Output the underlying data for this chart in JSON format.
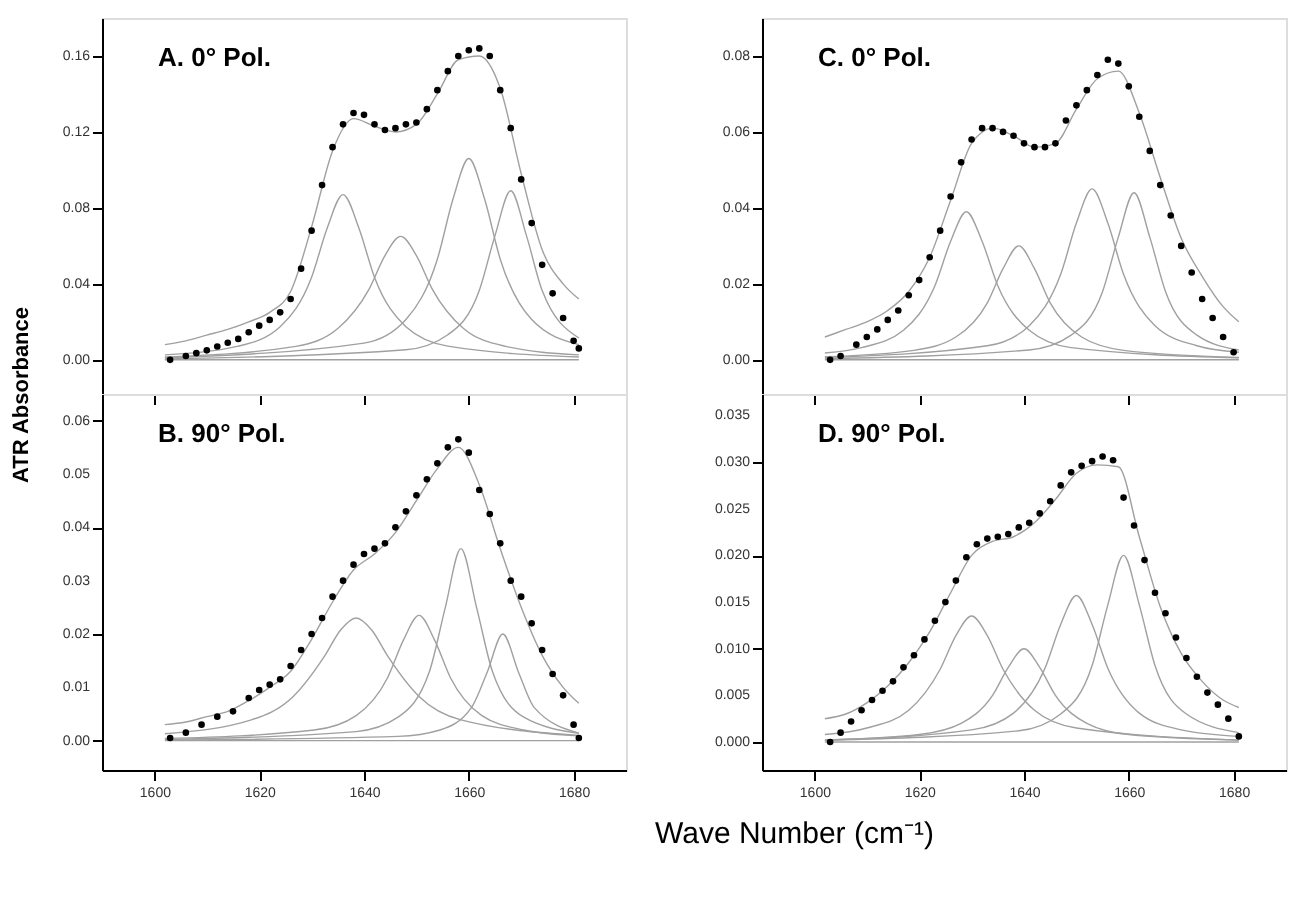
{
  "chart_data": [
    {
      "type": "scatter",
      "annotations": [
        "A. 0° Pol."
      ],
      "xlim": [
        1590,
        1690
      ],
      "xticks": [
        1600,
        1620,
        1640,
        1660,
        1680
      ],
      "ylim": [
        -0.018,
        0.18
      ],
      "yticks": [
        {
          "value": 0,
          "label": "0.00"
        },
        {
          "value": 0.04,
          "label": "0.04"
        },
        {
          "value": 0.08,
          "label": "0.08"
        },
        {
          "value": 0.12,
          "label": "0.12"
        },
        {
          "value": 0.16,
          "label": "0.16"
        }
      ],
      "tick_labels": "y",
      "grid": false,
      "series": [
        {
          "type": "scatter",
          "marker": "circle",
          "color": "#000000",
          "x": [
            1603,
            1606,
            1608,
            1610,
            1612,
            1614,
            1616,
            1618,
            1620,
            1622,
            1624,
            1626,
            1628,
            1630,
            1632,
            1634,
            1636,
            1638,
            1640,
            1642,
            1644,
            1646,
            1648,
            1650,
            1652,
            1654,
            1656,
            1658,
            1660,
            1662,
            1664,
            1666,
            1668,
            1670,
            1672,
            1674,
            1676,
            1678,
            1680,
            1681
          ],
          "values": [
            0,
            0.002,
            0.0035,
            0.005,
            0.007,
            0.009,
            0.011,
            0.0145,
            0.018,
            0.021,
            0.025,
            0.032,
            0.048,
            0.068,
            0.092,
            0.112,
            0.124,
            0.13,
            0.129,
            0.124,
            0.121,
            0.122,
            0.124,
            0.125,
            0.132,
            0.142,
            0.152,
            0.16,
            0.163,
            0.164,
            0.16,
            0.142,
            0.122,
            0.095,
            0.072,
            0.05,
            0.035,
            0.022,
            0.01,
            0.006
          ]
        },
        {
          "type": "line",
          "marker": "none",
          "color": "#a0a0a0",
          "x": [
            1602,
            1681
          ],
          "values": [
            0,
            0
          ]
        },
        {
          "type": "line",
          "marker": "none",
          "color": "#a0a0a0",
          "x": [
            1602,
            1616,
            1624,
            1630,
            1633,
            1636,
            1639,
            1642,
            1648,
            1656,
            1681
          ],
          "values": [
            0.0026,
            0.0072,
            0.0174,
            0.0435,
            0.0696,
            0.087,
            0.0696,
            0.0435,
            0.0174,
            0.0072,
            0.0015
          ]
        },
        {
          "type": "line",
          "marker": "none",
          "color": "#a0a0a0",
          "x": [
            1602,
            1627,
            1635,
            1641,
            1644,
            1647,
            1650,
            1653,
            1659,
            1667,
            1681
          ],
          "values": [
            0.0015,
            0.0071,
            0.0165,
            0.0374,
            0.0549,
            0.065,
            0.0549,
            0.0374,
            0.0165,
            0.0071,
            0.0026
          ]
        },
        {
          "type": "line",
          "marker": "none",
          "color": "#a0a0a0",
          "x": [
            1602,
            1640,
            1648,
            1654,
            1657,
            1660,
            1663,
            1666,
            1672,
            1681
          ],
          "values": [
            0.0011,
            0.0088,
            0.0212,
            0.053,
            0.0848,
            0.106,
            0.0848,
            0.053,
            0.0212,
            0.008
          ]
        },
        {
          "type": "line",
          "marker": "none",
          "color": "#a0a0a0",
          "x": [
            1602,
            1648,
            1656,
            1662,
            1665,
            1668,
            1671,
            1674,
            1681
          ],
          "values": [
            0.0005,
            0.0053,
            0.0132,
            0.0365,
            0.0654,
            0.089,
            0.0654,
            0.0365,
            0.0115
          ]
        },
        {
          "type": "line",
          "marker": "none",
          "color": "#a0a0a0",
          "x": [
            1602,
            1606,
            1610,
            1614,
            1618,
            1622,
            1626,
            1630,
            1634,
            1638,
            1642,
            1646,
            1650,
            1654,
            1658,
            1662,
            1666,
            1670,
            1674,
            1678,
            1681
          ],
          "values": [
            0.008,
            0.01,
            0.013,
            0.016,
            0.02,
            0.025,
            0.036,
            0.07,
            0.11,
            0.127,
            0.123,
            0.12,
            0.124,
            0.14,
            0.158,
            0.16,
            0.143,
            0.098,
            0.058,
            0.04,
            0.032
          ]
        }
      ]
    },
    {
      "type": "scatter",
      "annotations": [
        "C. 0° Pol."
      ],
      "xlim": [
        1590,
        1690
      ],
      "xticks": [
        1600,
        1620,
        1640,
        1660,
        1680
      ],
      "ylim": [
        -0.009,
        0.09
      ],
      "yticks": [
        {
          "value": 0,
          "label": "0.00"
        },
        {
          "value": 0.02,
          "label": "0.02"
        },
        {
          "value": 0.04,
          "label": "0.04"
        },
        {
          "value": 0.06,
          "label": "0.06"
        },
        {
          "value": 0.08,
          "label": "0.08"
        }
      ],
      "tick_labels": "y",
      "grid": false,
      "series": [
        {
          "type": "scatter",
          "marker": "circle",
          "color": "#000000",
          "x": [
            1603,
            1605,
            1608,
            1610,
            1612,
            1614,
            1616,
            1618,
            1620,
            1622,
            1624,
            1626,
            1628,
            1630,
            1632,
            1634,
            1636,
            1638,
            1640,
            1642,
            1644,
            1646,
            1648,
            1650,
            1652,
            1654,
            1656,
            1658,
            1660,
            1662,
            1664,
            1666,
            1668,
            1670,
            1672,
            1674,
            1676,
            1678,
            1680
          ],
          "values": [
            0,
            0.001,
            0.004,
            0.006,
            0.008,
            0.0105,
            0.013,
            0.017,
            0.021,
            0.027,
            0.034,
            0.043,
            0.052,
            0.058,
            0.061,
            0.061,
            0.06,
            0.059,
            0.057,
            0.056,
            0.056,
            0.057,
            0.063,
            0.067,
            0.071,
            0.075,
            0.079,
            0.078,
            0.072,
            0.064,
            0.055,
            0.046,
            0.038,
            0.03,
            0.023,
            0.016,
            0.011,
            0.006,
            0.002
          ]
        },
        {
          "type": "line",
          "marker": "none",
          "color": "#a0a0a0",
          "x": [
            1602,
            1681
          ],
          "values": [
            0,
            0
          ]
        },
        {
          "type": "line",
          "marker": "none",
          "color": "#a0a0a0",
          "x": [
            1602,
            1609,
            1617,
            1623,
            1626,
            1629,
            1632,
            1635,
            1641,
            1649,
            1681
          ],
          "values": [
            0.0018,
            0.0032,
            0.0078,
            0.0195,
            0.0312,
            0.039,
            0.0312,
            0.0195,
            0.0078,
            0.0032,
            0.0005
          ]
        },
        {
          "type": "line",
          "marker": "none",
          "color": "#a0a0a0",
          "x": [
            1602,
            1619,
            1627,
            1633,
            1636,
            1639,
            1642,
            1645,
            1651,
            1659,
            1681
          ],
          "values": [
            0.0008,
            0.0025,
            0.006,
            0.015,
            0.024,
            0.03,
            0.024,
            0.015,
            0.006,
            0.0025,
            0.0006
          ]
        },
        {
          "type": "line",
          "marker": "none",
          "color": "#a0a0a0",
          "x": [
            1602,
            1633,
            1641,
            1647,
            1650,
            1653,
            1656,
            1659,
            1665,
            1673,
            1681
          ],
          "values": [
            0.0006,
            0.0037,
            0.009,
            0.0225,
            0.036,
            0.045,
            0.036,
            0.0225,
            0.009,
            0.0037,
            0.002
          ]
        },
        {
          "type": "line",
          "marker": "none",
          "color": "#a0a0a0",
          "x": [
            1602,
            1641,
            1649,
            1655,
            1658,
            1661,
            1664,
            1667,
            1673,
            1681
          ],
          "values": [
            0.0003,
            0.0026,
            0.0065,
            0.018,
            0.0323,
            0.044,
            0.0323,
            0.018,
            0.0065,
            0.0026
          ]
        },
        {
          "type": "line",
          "marker": "none",
          "color": "#a0a0a0",
          "x": [
            1602,
            1606,
            1610,
            1614,
            1618,
            1622,
            1626,
            1630,
            1634,
            1638,
            1642,
            1646,
            1650,
            1654,
            1658,
            1662,
            1666,
            1670,
            1674,
            1678,
            1681
          ],
          "values": [
            0.006,
            0.008,
            0.01,
            0.013,
            0.018,
            0.027,
            0.042,
            0.057,
            0.061,
            0.059,
            0.056,
            0.057,
            0.066,
            0.074,
            0.076,
            0.065,
            0.048,
            0.032,
            0.022,
            0.014,
            0.01
          ]
        }
      ]
    },
    {
      "type": "scatter",
      "annotations": [
        "B. 90° Pol."
      ],
      "ylabel": "ATR Absorbance",
      "xlim": [
        1590,
        1690
      ],
      "xticks": [
        1600,
        1620,
        1640,
        1660,
        1680
      ],
      "ylim": [
        -0.0055,
        0.065
      ],
      "yticks": [
        {
          "value": 0,
          "label": "0.00"
        },
        {
          "value": 0.01,
          "label": "0.01"
        },
        {
          "value": 0.02,
          "label": "0.02"
        },
        {
          "value": 0.03,
          "label": "0.03"
        },
        {
          "value": 0.04,
          "label": "0.04"
        },
        {
          "value": 0.05,
          "label": "0.05"
        },
        {
          "value": 0.06,
          "label": "0.06"
        }
      ],
      "grid": false,
      "series": [
        {
          "type": "scatter",
          "marker": "circle",
          "color": "#000000",
          "x": [
            1603,
            1606,
            1609,
            1612,
            1615,
            1618,
            1620,
            1622,
            1624,
            1626,
            1628,
            1630,
            1632,
            1634,
            1636,
            1638,
            1640,
            1642,
            1644,
            1646,
            1648,
            1650,
            1652,
            1654,
            1656,
            1658,
            1660,
            1662,
            1664,
            1666,
            1668,
            1670,
            1672,
            1674,
            1676,
            1678,
            1680,
            1681
          ],
          "values": [
            0.0005,
            0.0015,
            0.003,
            0.0045,
            0.0055,
            0.008,
            0.0095,
            0.0105,
            0.0115,
            0.014,
            0.017,
            0.02,
            0.023,
            0.027,
            0.03,
            0.033,
            0.035,
            0.036,
            0.037,
            0.04,
            0.043,
            0.046,
            0.049,
            0.052,
            0.055,
            0.0565,
            0.054,
            0.047,
            0.0425,
            0.037,
            0.03,
            0.027,
            0.022,
            0.017,
            0.0125,
            0.0085,
            0.003,
            0.0005
          ]
        },
        {
          "type": "line",
          "marker": "none",
          "color": "#a0a0a0",
          "x": [
            1602,
            1681
          ],
          "values": [
            0,
            0
          ]
        },
        {
          "type": "line",
          "marker": "none",
          "color": "#a0a0a0",
          "x": [
            1602,
            1618.5,
            1626.5,
            1632.5,
            1635.5,
            1638.5,
            1641.5,
            1644.5,
            1650.5,
            1658.5,
            1681
          ],
          "values": [
            0.0013,
            0.0039,
            0.0083,
            0.0159,
            0.0207,
            0.023,
            0.0207,
            0.0159,
            0.0083,
            0.0039,
            0.001
          ]
        },
        {
          "type": "line",
          "marker": "none",
          "color": "#a0a0a0",
          "x": [
            1602,
            1630.5,
            1638.5,
            1644.5,
            1647.5,
            1650.5,
            1653.5,
            1656.5,
            1662.5,
            1670.5,
            1681
          ],
          "values": [
            0.0004,
            0.002,
            0.0047,
            0.0118,
            0.0188,
            0.0235,
            0.0188,
            0.0118,
            0.0047,
            0.002,
            0.0009
          ]
        },
        {
          "type": "line",
          "marker": "none",
          "color": "#a0a0a0",
          "x": [
            1602,
            1638.5,
            1646.5,
            1652.5,
            1655.5,
            1658.5,
            1661.5,
            1664.5,
            1670.5,
            1681
          ],
          "values": [
            0.0002,
            0.0017,
            0.0044,
            0.013,
            0.0249,
            0.036,
            0.0249,
            0.013,
            0.0044,
            0.0014
          ]
        },
        {
          "type": "line",
          "marker": "none",
          "color": "#a0a0a0",
          "x": [
            1602,
            1646.5,
            1654.5,
            1660.5,
            1663.5,
            1666.5,
            1669.5,
            1672.5,
            1681
          ],
          "values": [
            0.0001,
            0.0008,
            0.002,
            0.0062,
            0.0128,
            0.02,
            0.0128,
            0.0062,
            0.0014
          ]
        },
        {
          "type": "line",
          "marker": "none",
          "color": "#a0a0a0",
          "x": [
            1602,
            1606,
            1610,
            1614,
            1618,
            1622,
            1626,
            1630,
            1634,
            1638,
            1642,
            1646,
            1650,
            1654,
            1658,
            1662,
            1666,
            1670,
            1674,
            1678,
            1681
          ],
          "values": [
            0.003,
            0.0035,
            0.0045,
            0.0055,
            0.0075,
            0.01,
            0.013,
            0.019,
            0.026,
            0.032,
            0.035,
            0.039,
            0.045,
            0.051,
            0.055,
            0.048,
            0.036,
            0.025,
            0.016,
            0.01,
            0.007
          ]
        }
      ]
    },
    {
      "type": "scatter",
      "annotations": [
        "D. 90° Pol."
      ],
      "xlabel": "Wave Number (cm⁻¹)",
      "xlim": [
        1590,
        1690
      ],
      "xticks": [
        1600,
        1620,
        1640,
        1660,
        1680
      ],
      "ylim": [
        -0.003,
        0.0373
      ],
      "yticks": [
        {
          "value": 0,
          "label": "0.000"
        },
        {
          "value": 0.005,
          "label": "0.005"
        },
        {
          "value": 0.01,
          "label": "0.010"
        },
        {
          "value": 0.015,
          "label": "0.015"
        },
        {
          "value": 0.02,
          "label": "0.020"
        },
        {
          "value": 0.025,
          "label": "0.025"
        },
        {
          "value": 0.03,
          "label": "0.030"
        },
        {
          "value": 0.035,
          "label": "0.035"
        }
      ],
      "grid": false,
      "series": [
        {
          "type": "scatter",
          "marker": "circle",
          "color": "#000000",
          "x": [
            1603,
            1605,
            1607,
            1609,
            1611,
            1613,
            1615,
            1617,
            1619,
            1621,
            1623,
            1625,
            1627,
            1629,
            1631,
            1633,
            1635,
            1637,
            1639,
            1641,
            1643,
            1645,
            1647,
            1649,
            1651,
            1653,
            1655,
            1657,
            1659,
            1661,
            1663,
            1665,
            1667,
            1669,
            1671,
            1673,
            1675,
            1677,
            1679,
            1681
          ],
          "values": [
            0,
            0.001,
            0.0022,
            0.0034,
            0.0045,
            0.0055,
            0.0065,
            0.008,
            0.0093,
            0.011,
            0.013,
            0.015,
            0.0173,
            0.0198,
            0.0212,
            0.0218,
            0.022,
            0.0223,
            0.023,
            0.0235,
            0.0245,
            0.0258,
            0.0275,
            0.0289,
            0.0296,
            0.0301,
            0.0306,
            0.0302,
            0.0262,
            0.0232,
            0.0195,
            0.016,
            0.0138,
            0.0112,
            0.009,
            0.007,
            0.0053,
            0.004,
            0.0025,
            0.0006
          ]
        },
        {
          "type": "line",
          "marker": "none",
          "color": "#a0a0a0",
          "x": [
            1602,
            1681
          ],
          "values": [
            0,
            0
          ]
        },
        {
          "type": "line",
          "marker": "none",
          "color": "#a0a0a0",
          "x": [
            1602,
            1610,
            1618,
            1624,
            1627,
            1630,
            1633,
            1636,
            1642,
            1650,
            1681
          ],
          "values": [
            0.0008,
            0.0015,
            0.0034,
            0.0078,
            0.0114,
            0.0135,
            0.0114,
            0.0078,
            0.0034,
            0.0015,
            0.0002
          ]
        },
        {
          "type": "line",
          "marker": "none",
          "color": "#a0a0a0",
          "x": [
            1602,
            1620,
            1628,
            1634,
            1637,
            1640,
            1643,
            1646,
            1652,
            1660,
            1681
          ],
          "values": [
            0.0002,
            0.0008,
            0.002,
            0.005,
            0.008,
            0.01,
            0.008,
            0.005,
            0.002,
            0.0008,
            0.0002
          ]
        },
        {
          "type": "line",
          "marker": "none",
          "color": "#a0a0a0",
          "x": [
            1602,
            1630,
            1638,
            1644,
            1647,
            1650,
            1653,
            1656,
            1662,
            1670,
            1681
          ],
          "values": [
            0.0002,
            0.0013,
            0.0031,
            0.0079,
            0.0126,
            0.0157,
            0.0126,
            0.0079,
            0.0031,
            0.0013,
            0.0006
          ]
        },
        {
          "type": "line",
          "marker": "none",
          "color": "#a0a0a0",
          "x": [
            1602,
            1639,
            1647,
            1653,
            1656,
            1659,
            1662,
            1665,
            1671,
            1681
          ],
          "values": [
            0.0002,
            0.0012,
            0.003,
            0.0082,
            0.0147,
            0.02,
            0.0147,
            0.0082,
            0.003,
            0.001
          ]
        },
        {
          "type": "line",
          "marker": "none",
          "color": "#a0a0a0",
          "x": [
            1602,
            1606,
            1610,
            1614,
            1618,
            1622,
            1626,
            1630,
            1634,
            1638,
            1642,
            1646,
            1650,
            1654,
            1658,
            1662,
            1666,
            1670,
            1674,
            1678,
            1681
          ],
          "values": [
            0.0025,
            0.003,
            0.0042,
            0.006,
            0.0085,
            0.0118,
            0.016,
            0.02,
            0.0215,
            0.022,
            0.0235,
            0.026,
            0.0288,
            0.0297,
            0.0295,
            0.022,
            0.0145,
            0.0095,
            0.0065,
            0.0045,
            0.0037
          ]
        }
      ]
    }
  ]
}
